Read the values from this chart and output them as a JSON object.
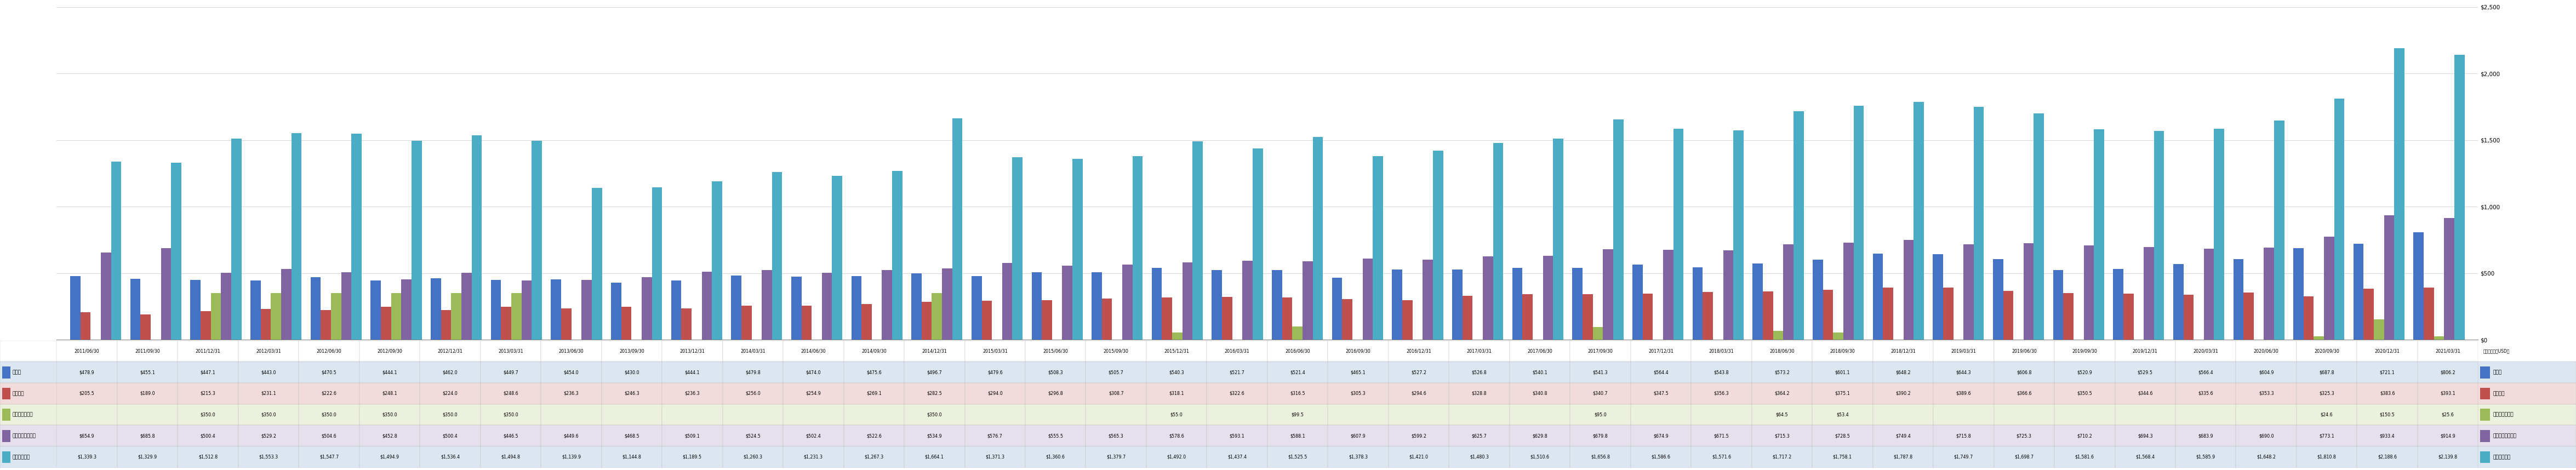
{
  "categories": [
    "2011/06/30",
    "2011/09/30",
    "2011/12/31",
    "2012/03/31",
    "2012/06/30",
    "2012/09/30",
    "2012/12/31",
    "2013/03/31",
    "2013/06/30",
    "2013/09/30",
    "2013/12/31",
    "2014/03/31",
    "2014/06/30",
    "2014/09/30",
    "2014/12/31",
    "2015/03/31",
    "2015/06/30",
    "2015/09/30",
    "2015/12/31",
    "2016/03/31",
    "2016/06/30",
    "2016/09/30",
    "2016/12/31",
    "2017/03/31",
    "2017/06/30",
    "2017/09/30",
    "2017/12/31",
    "2018/03/31",
    "2018/06/30",
    "2018/09/30",
    "2018/12/31",
    "2019/03/31",
    "2019/06/30",
    "2019/09/30",
    "2019/12/31",
    "2020/03/31",
    "2020/06/30",
    "2020/09/30",
    "2020/12/31",
    "2021/03/31"
  ],
  "series_names": [
    "買掛金",
    "繰延収益",
    "短期有利子負債",
    "その他の流動負債",
    "流動負債合計"
  ],
  "series_data": {
    "買掛金": [
      478.9,
      455.1,
      447.1,
      443.0,
      470.5,
      444.1,
      462.0,
      449.7,
      454.0,
      430.0,
      444.1,
      479.8,
      474.0,
      475.6,
      496.7,
      479.6,
      508.3,
      505.7,
      540.3,
      521.7,
      521.4,
      465.1,
      527.2,
      526.8,
      540.1,
      541.3,
      564.4,
      543.8,
      573.2,
      601.1,
      648.2,
      644.3,
      606.8,
      520.9,
      529.5,
      566.4,
      604.9,
      687.8,
      721.1,
      806.2
    ],
    "繰延収益": [
      205.5,
      189.0,
      215.3,
      231.1,
      222.6,
      248.1,
      224.0,
      248.6,
      236.3,
      246.3,
      236.3,
      256.0,
      254.9,
      269.1,
      282.5,
      294.0,
      296.8,
      308.7,
      318.1,
      322.6,
      316.5,
      305.3,
      294.6,
      328.8,
      340.8,
      340.7,
      347.5,
      356.3,
      364.2,
      375.1,
      390.2,
      389.6,
      366.6,
      350.5,
      344.6,
      335.6,
      353.3,
      325.3,
      383.6,
      393.1
    ],
    "短期有利子負債": [
      0,
      0,
      350.0,
      350.0,
      350.0,
      350.0,
      350.0,
      350.0,
      0,
      0,
      0,
      0,
      0,
      0,
      350.0,
      0,
      0,
      0,
      55.0,
      0,
      99.5,
      0,
      0,
      0,
      0,
      95.0,
      0,
      0,
      64.5,
      53.4,
      0,
      0,
      0,
      0,
      0,
      0,
      0,
      24.6,
      150.5,
      25.6
    ],
    "その他の流動負債": [
      654.9,
      685.8,
      500.4,
      529.2,
      504.6,
      452.8,
      500.4,
      446.5,
      449.6,
      468.5,
      509.1,
      524.5,
      502.4,
      522.6,
      534.9,
      576.7,
      555.5,
      565.3,
      578.6,
      593.1,
      588.1,
      607.9,
      599.2,
      625.7,
      629.8,
      679.8,
      674.9,
      671.5,
      715.3,
      728.5,
      749.4,
      715.8,
      725.3,
      710.2,
      694.3,
      683.9,
      690.0,
      773.1,
      933.4,
      914.9
    ],
    "流動負債合計": [
      1339.3,
      1329.9,
      1512.8,
      1553.3,
      1547.7,
      1494.9,
      1536.4,
      1494.8,
      1139.9,
      1144.8,
      1189.5,
      1260.3,
      1231.3,
      1267.3,
      1664.1,
      1371.3,
      1360.6,
      1379.7,
      1492.0,
      1437.4,
      1525.5,
      1378.3,
      1421.0,
      1480.3,
      1510.6,
      1656.8,
      1586.6,
      1571.6,
      1717.2,
      1758.1,
      1787.8,
      1749.7,
      1698.7,
      1581.6,
      1568.4,
      1585.9,
      1648.2,
      1810.8,
      2188.6,
      2139.8
    ]
  },
  "colors": {
    "買掛金": "#4472C4",
    "繰延収益": "#C0504D",
    "短期有利子負債": "#9BBB59",
    "その他の流動負債": "#8064A2",
    "流動負債合計": "#4BACC6"
  },
  "ylim": [
    0,
    2500
  ],
  "yticks": [
    0,
    500,
    1000,
    1500,
    2000,
    2500
  ],
  "ytick_labels": [
    "$0",
    "$500",
    "$1,000",
    "$1,500",
    "$2,000",
    "$2,500"
  ],
  "unit_label": "（単位：百万USD）",
  "bar_width": 0.17,
  "bg_color": "#FFFFFF",
  "grid_color": "#C8C8C8",
  "font_size_xtick": 6.0,
  "font_size_ytick": 7.5,
  "font_size_table": 5.8,
  "font_size_legend": 6.5,
  "table_row_bg": [
    "#DCE6F1",
    "#F2DCDB",
    "#EBF1DD",
    "#E5E0EC",
    "#DCE6F1"
  ],
  "legend_row_bg": [
    "#DCE6F1",
    "#F2DCDB",
    "#EBF1DD",
    "#E5E0EC",
    "#DCE6F1"
  ]
}
